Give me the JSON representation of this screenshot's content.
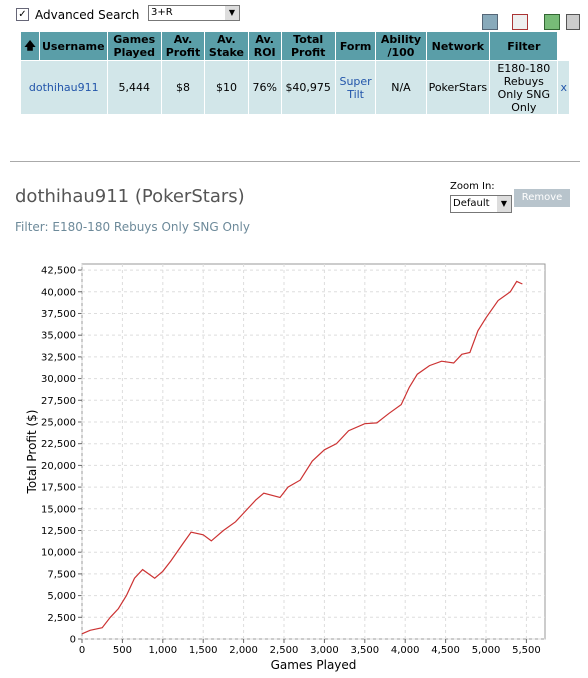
{
  "advanced_search": {
    "label": "Advanced Search",
    "dropdown": "3+R"
  },
  "table": {
    "headers": [
      "Username",
      "Games Played",
      "Av. Profit",
      "Av. Stake",
      "Av. ROI",
      "Total Profit",
      "Form",
      "Ability /100",
      "Network",
      "Filter"
    ],
    "rows": [
      [
        "dothihau911",
        "5,444",
        "$8",
        "$10",
        "76%",
        "$40,975",
        "Super Tilt",
        "N/A",
        "PokerStars",
        "E180-180 Rebuys Only SNG Only",
        "x"
      ]
    ]
  },
  "player": {
    "title": "dothihau911 (PokerStars)",
    "filter": "Filter: E180-180 Rebuys Only SNG Only",
    "zoom_label": "Zoom In:",
    "zoom_select": "Default",
    "remove": "Remove"
  },
  "chart_data": {
    "type": "line",
    "xlabel": "Games Played",
    "ylabel": "Total Profit ($)",
    "color": "#cc3333",
    "grid": true,
    "x": [
      0,
      100,
      250,
      350,
      450,
      550,
      650,
      750,
      900,
      1000,
      1100,
      1250,
      1350,
      1500,
      1600,
      1750,
      1900,
      2000,
      2150,
      2250,
      2450,
      2550,
      2700,
      2850,
      3000,
      3150,
      3300,
      3500,
      3650,
      3800,
      3950,
      4050,
      4150,
      4300,
      4450,
      4600,
      4700,
      4800,
      4900,
      5000,
      5150,
      5300,
      5380,
      5450
    ],
    "values": [
      600,
      1000,
      1300,
      2500,
      3500,
      5000,
      7000,
      8000,
      7000,
      7800,
      9000,
      11000,
      12300,
      12000,
      11300,
      12500,
      13500,
      14500,
      16000,
      16800,
      16300,
      17500,
      18300,
      20500,
      21800,
      22500,
      24000,
      24800,
      24900,
      26000,
      27000,
      29000,
      30500,
      31500,
      32000,
      31800,
      32800,
      33000,
      35500,
      37000,
      39000,
      40000,
      41200,
      40900
    ],
    "xlim": [
      0,
      5730
    ],
    "ylim": [
      0,
      43200
    ],
    "xticks": [
      0,
      500,
      {
        "value": 1000,
        "label": "1,000"
      },
      {
        "value": 1500,
        "label": "1,500"
      },
      {
        "value": 2000,
        "label": "2,000"
      },
      {
        "value": 2500,
        "label": "2,500"
      },
      {
        "value": 3000,
        "label": "3,000"
      },
      {
        "value": 3500,
        "label": "3,500"
      },
      {
        "value": 4000,
        "label": "4,000"
      },
      {
        "value": 4500,
        "label": "4,500"
      },
      {
        "value": 5000,
        "label": "5,000"
      },
      {
        "value": 5500,
        "label": "5,500"
      }
    ],
    "yticks": [
      0,
      {
        "value": 2500,
        "label": "2,500"
      },
      {
        "value": 5000,
        "label": "5,000"
      },
      {
        "value": 7500,
        "label": "7,500"
      },
      {
        "value": 10000,
        "label": "10,000"
      },
      {
        "value": 12500,
        "label": "12,500"
      },
      {
        "value": 15000,
        "label": "15,000"
      },
      {
        "value": 17500,
        "label": "17,500"
      },
      {
        "value": 20000,
        "label": "20,000"
      },
      {
        "value": 22500,
        "label": "22,500"
      },
      {
        "value": 25000,
        "label": "25,000"
      },
      {
        "value": 27500,
        "label": "27,500"
      },
      {
        "value": 30000,
        "label": "30,000"
      },
      {
        "value": 32500,
        "label": "32,500"
      },
      {
        "value": 35000,
        "label": "35,000"
      },
      {
        "value": 37500,
        "label": "37,500"
      },
      {
        "value": 40000,
        "label": "40,000"
      },
      {
        "value": 42500,
        "label": "42,500"
      }
    ]
  }
}
